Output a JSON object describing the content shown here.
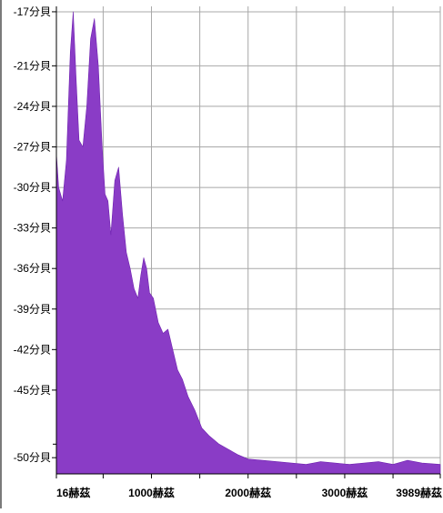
{
  "chart_data": {
    "type": "area",
    "title": "",
    "xlabel": "",
    "ylabel": "",
    "xlim": [
      16,
      3989
    ],
    "ylim": [
      -51.2,
      -16.6
    ],
    "grid": true,
    "colors": {
      "fill": "#8a3cc6",
      "edge": "#6f22b0",
      "grid": "#a8a8a8",
      "axis": "#000000"
    },
    "y_ticks": [
      {
        "value": -17,
        "label": "-17分貝"
      },
      {
        "value": -21,
        "label": "-21分貝"
      },
      {
        "value": -24,
        "label": "-24分貝"
      },
      {
        "value": -27,
        "label": "-27分貝"
      },
      {
        "value": -30,
        "label": "-30分貝"
      },
      {
        "value": -33,
        "label": "-33分貝"
      },
      {
        "value": -36,
        "label": "-36分貝"
      },
      {
        "value": -39,
        "label": "-39分貝"
      },
      {
        "value": -42,
        "label": "-42分貝"
      },
      {
        "value": -45,
        "label": "-45分貝"
      },
      {
        "value": -50,
        "label": "-50分貝"
      }
    ],
    "y_minor_ticks": [
      -49
    ],
    "x_ticks": [
      {
        "value": 16,
        "label": "16赫茲"
      },
      {
        "value": 1000,
        "label": "1000赫茲"
      },
      {
        "value": 2000,
        "label": "2000赫茲"
      },
      {
        "value": 3000,
        "label": "3000赫茲"
      },
      {
        "value": 3989,
        "label": "3989赫茲"
      }
    ],
    "x_grid": [
      16,
      500,
      1000,
      1500,
      2000,
      2500,
      3000,
      3500,
      3989
    ],
    "series": [
      {
        "x": [
          16,
          40,
          80,
          120,
          160,
          190,
          220,
          250,
          290,
          330,
          370,
          410,
          450,
          490,
          520,
          550,
          580,
          620,
          660,
          700,
          740,
          780,
          820,
          860,
          890,
          920,
          950,
          980,
          1020,
          1070,
          1120,
          1170,
          1220,
          1270,
          1320,
          1380,
          1450,
          1520,
          1600,
          1700,
          1800,
          1900,
          2000,
          2150,
          2300,
          2450,
          2600,
          2750,
          2900,
          3050,
          3200,
          3350,
          3500,
          3650,
          3800,
          3989
        ],
        "y": [
          -27.5,
          -30,
          -31,
          -28,
          -20,
          -17,
          -22,
          -26.5,
          -27,
          -24,
          -19,
          -17.5,
          -21,
          -27,
          -30.5,
          -31,
          -33.5,
          -29.5,
          -28.5,
          -32,
          -34.8,
          -36,
          -37.5,
          -38.2,
          -36.5,
          -35.2,
          -36,
          -37.8,
          -38.2,
          -40,
          -40.8,
          -40.5,
          -42,
          -43.5,
          -44.2,
          -45.5,
          -46.5,
          -47.8,
          -48.4,
          -49,
          -49.4,
          -49.8,
          -50.1,
          -50.2,
          -50.3,
          -50.4,
          -50.5,
          -50.3,
          -50.4,
          -50.5,
          -50.4,
          -50.3,
          -50.5,
          -50.2,
          -50.4,
          -50.5
        ]
      }
    ]
  }
}
